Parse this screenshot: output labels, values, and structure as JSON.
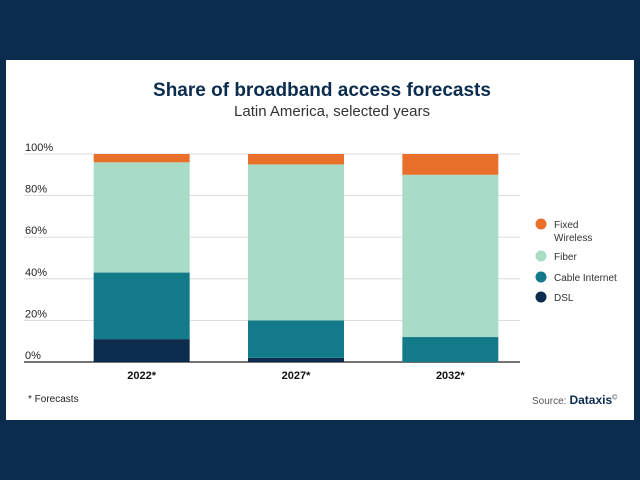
{
  "chart_data": {
    "type": "bar",
    "stacked": true,
    "title": "Share of broadband access forecasts",
    "subtitle": "Latin America, selected years",
    "categories": [
      "2022*",
      "2027*",
      "2032*"
    ],
    "series": [
      {
        "name": "DSL",
        "color": "#0c2c4e",
        "values": [
          11,
          2,
          0
        ]
      },
      {
        "name": "Cable Internet",
        "color": "#137a8a",
        "values": [
          32,
          18,
          12
        ]
      },
      {
        "name": "Fiber",
        "color": "#a8dcc6",
        "values": [
          53,
          75,
          78
        ]
      },
      {
        "name": "Fixed Wireless",
        "color": "#e8702a",
        "values": [
          4,
          5,
          10
        ]
      }
    ],
    "yticks": [
      "0%",
      "20%",
      "40%",
      "60%",
      "80%",
      "100%"
    ],
    "ylim": [
      0,
      100
    ],
    "grid": true,
    "legend_position": "right",
    "legend_order": [
      "Fixed Wireless",
      "Fiber",
      "Cable Internet",
      "DSL"
    ]
  },
  "footnote": "* Forecasts",
  "source": {
    "label": "Source:",
    "brand": "Dataxis",
    "mark": "©"
  }
}
